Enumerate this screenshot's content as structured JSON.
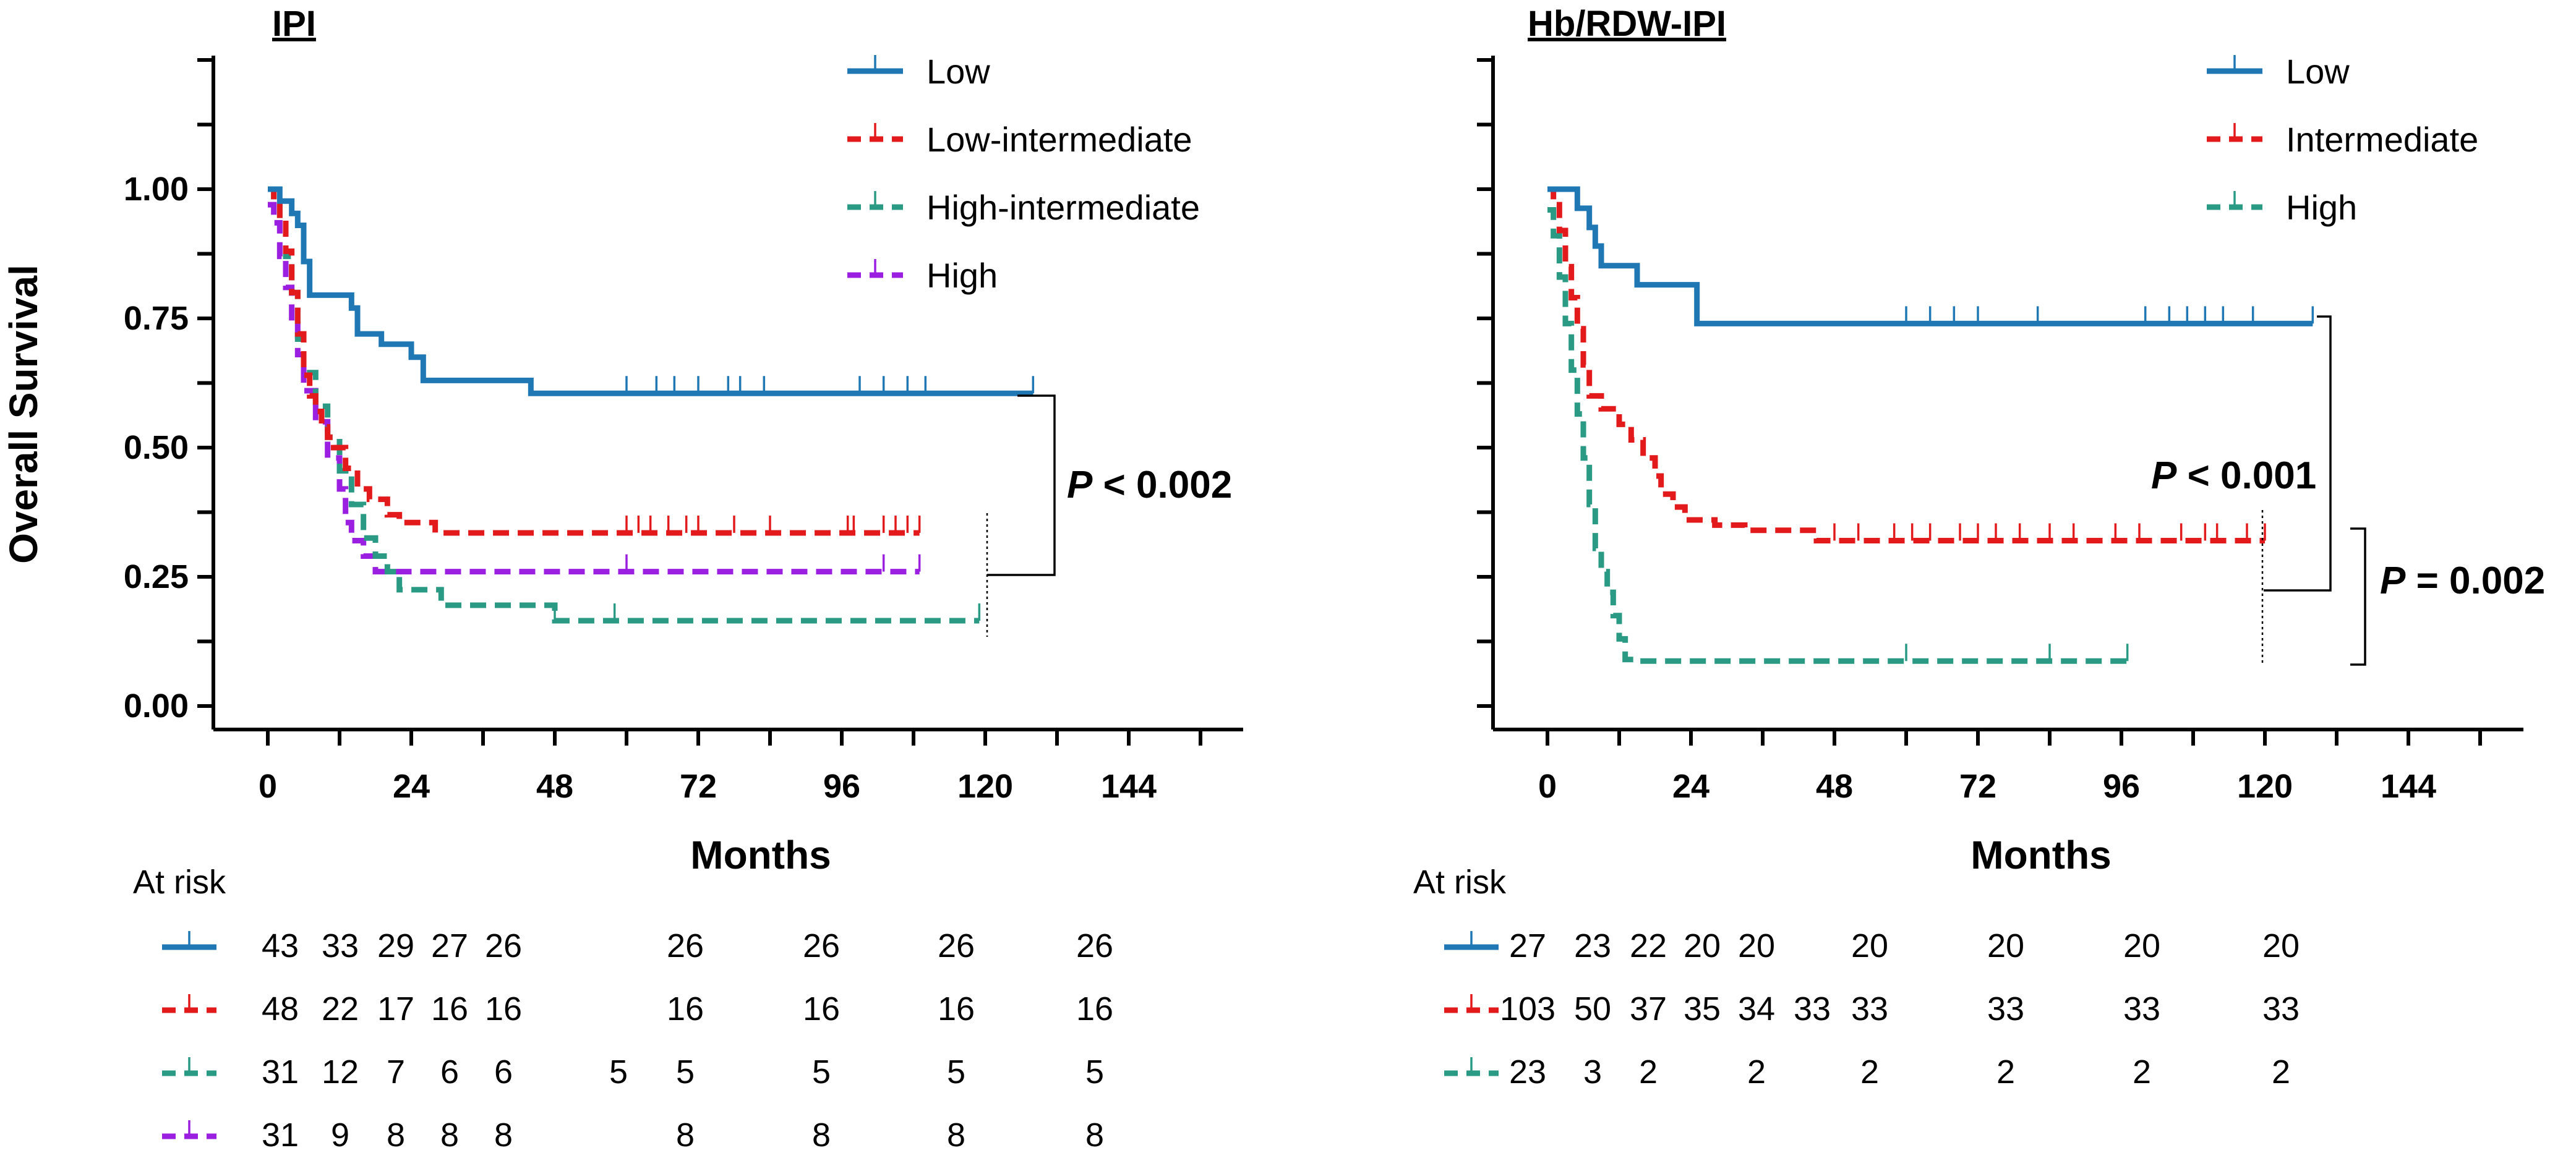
{
  "chart_data": [
    {
      "type": "line",
      "subtype": "kaplan-meier",
      "title": "IPI",
      "xlabel": "Months",
      "ylabel": "Overall Survival",
      "xlim": [
        0,
        162
      ],
      "ylim": [
        0,
        1.25
      ],
      "xticks": [
        "0",
        "24",
        "48",
        "72",
        "96",
        "120",
        "144"
      ],
      "yticks": [
        "0.00",
        "0.25",
        "0.50",
        "0.75",
        "1.00"
      ],
      "pvalues": [
        {
          "label": "P",
          "text": "< 0.002"
        }
      ],
      "series": [
        {
          "name": "Low",
          "color": "#1f77b4",
          "dash": "solid",
          "steps": [
            [
              0,
              1.0
            ],
            [
              2,
              0.977
            ],
            [
              4,
              0.953
            ],
            [
              5,
              0.93
            ],
            [
              6,
              0.86
            ],
            [
              7,
              0.795
            ],
            [
              14,
              0.77
            ],
            [
              15,
              0.72
            ],
            [
              19,
              0.7
            ],
            [
              24,
              0.675
            ],
            [
              26,
              0.63
            ],
            [
              44,
              0.605
            ],
            [
              128,
              0.605
            ]
          ],
          "censors": [
            60,
            65,
            68,
            72,
            77,
            79,
            83,
            99,
            103,
            107,
            110,
            128
          ]
        },
        {
          "name": "Low-intermediate",
          "color": "#e31a1c",
          "dash": "dashed",
          "steps": [
            [
              0,
              1.0
            ],
            [
              1,
              0.98
            ],
            [
              2,
              0.94
            ],
            [
              3,
              0.88
            ],
            [
              4,
              0.8
            ],
            [
              5,
              0.72
            ],
            [
              6,
              0.64
            ],
            [
              7,
              0.6
            ],
            [
              8,
              0.57
            ],
            [
              9,
              0.54
            ],
            [
              10,
              0.52
            ],
            [
              11,
              0.5
            ],
            [
              13,
              0.46
            ],
            [
              15,
              0.42
            ],
            [
              17,
              0.4
            ],
            [
              20,
              0.37
            ],
            [
              22,
              0.355
            ],
            [
              28,
              0.335
            ],
            [
              109,
              0.335
            ]
          ],
          "censors": [
            60,
            62,
            64,
            67,
            70,
            72,
            78,
            84,
            97,
            98,
            103,
            105,
            107,
            109
          ]
        },
        {
          "name": "High-intermediate",
          "color": "#2a9a84",
          "dash": "dashed",
          "steps": [
            [
              0,
              1.0
            ],
            [
              1,
              0.97
            ],
            [
              2,
              0.94
            ],
            [
              3,
              0.87
            ],
            [
              4,
              0.8
            ],
            [
              5,
              0.71
            ],
            [
              6,
              0.645
            ],
            [
              8,
              0.58
            ],
            [
              10,
              0.52
            ],
            [
              12,
              0.455
            ],
            [
              14,
              0.39
            ],
            [
              16,
              0.325
            ],
            [
              18,
              0.29
            ],
            [
              20,
              0.26
            ],
            [
              22,
              0.225
            ],
            [
              29,
              0.195
            ],
            [
              48,
              0.165
            ],
            [
              119,
              0.165
            ]
          ],
          "censors": [
            48,
            58,
            119
          ]
        },
        {
          "name": "High",
          "color": "#9b1fe0",
          "dash": "dashed",
          "steps": [
            [
              0,
              0.97
            ],
            [
              1,
              0.935
            ],
            [
              2,
              0.87
            ],
            [
              3,
              0.81
            ],
            [
              4,
              0.74
            ],
            [
              5,
              0.68
            ],
            [
              6,
              0.61
            ],
            [
              8,
              0.55
            ],
            [
              10,
              0.48
            ],
            [
              12,
              0.42
            ],
            [
              13,
              0.355
            ],
            [
              14,
              0.32
            ],
            [
              16,
              0.29
            ],
            [
              18,
              0.26
            ],
            [
              109,
              0.26
            ]
          ],
          "censors": [
            60,
            103,
            109
          ]
        }
      ],
      "at_risk": {
        "header": "At risk",
        "times": [
          0,
          12,
          24,
          36,
          48,
          60,
          72,
          96,
          120,
          144
        ],
        "rows": [
          {
            "name": "Low",
            "color": "#1f77b4",
            "dash": "solid",
            "values": [
              "43",
              "33",
              "29",
              "27",
              "26",
              "",
              "26",
              "26",
              "26",
              "26"
            ]
          },
          {
            "name": "Low-intermediate",
            "color": "#e31a1c",
            "dash": "dashed",
            "values": [
              "48",
              "22",
              "17",
              "16",
              "16",
              "",
              "16",
              "16",
              "16",
              "16"
            ]
          },
          {
            "name": "High-intermediate",
            "color": "#2a9a84",
            "dash": "dashed",
            "values": [
              "31",
              "12",
              "7",
              "6",
              "6",
              "5",
              "5",
              "5",
              "5",
              "5"
            ]
          },
          {
            "name": "High",
            "color": "#9b1fe0",
            "dash": "dashed",
            "values": [
              "31",
              "9",
              "8",
              "8",
              "8",
              "",
              "8",
              "8",
              "8",
              "8"
            ]
          }
        ]
      }
    },
    {
      "type": "line",
      "subtype": "kaplan-meier",
      "title": "Hb/RDW-IPI",
      "xlabel": "Months",
      "ylabel": "",
      "xlim": [
        0,
        162
      ],
      "ylim": [
        0,
        1.25
      ],
      "xticks": [
        "0",
        "24",
        "48",
        "72",
        "96",
        "120",
        "144"
      ],
      "yticks": [],
      "pvalues": [
        {
          "label": "P",
          "text": "< 0.001"
        },
        {
          "label": "P",
          "text": "= 0.002"
        }
      ],
      "series": [
        {
          "name": "Low",
          "color": "#1f77b4",
          "dash": "solid",
          "steps": [
            [
              0,
              1.0
            ],
            [
              5,
              0.963
            ],
            [
              7,
              0.926
            ],
            [
              8,
              0.89
            ],
            [
              9,
              0.852
            ],
            [
              15,
              0.815
            ],
            [
              25,
              0.74
            ],
            [
              128,
              0.74
            ]
          ],
          "censors": [
            60,
            64,
            68,
            72,
            82,
            100,
            104,
            107,
            110,
            113,
            118,
            128
          ]
        },
        {
          "name": "Intermediate",
          "color": "#e31a1c",
          "dash": "dashed",
          "steps": [
            [
              0,
              1.0
            ],
            [
              1,
              0.97
            ],
            [
              2,
              0.92
            ],
            [
              3,
              0.85
            ],
            [
              4,
              0.79
            ],
            [
              5,
              0.73
            ],
            [
              6,
              0.66
            ],
            [
              7,
              0.6
            ],
            [
              9,
              0.575
            ],
            [
              12,
              0.545
            ],
            [
              14,
              0.515
            ],
            [
              16,
              0.48
            ],
            [
              18,
              0.445
            ],
            [
              19,
              0.41
            ],
            [
              21,
              0.385
            ],
            [
              23,
              0.36
            ],
            [
              28,
              0.35
            ],
            [
              33,
              0.34
            ],
            [
              45,
              0.32
            ],
            [
              120,
              0.32
            ]
          ],
          "censors": [
            48,
            52,
            58,
            61,
            64,
            69,
            72,
            75,
            79,
            84,
            88,
            95,
            99,
            106,
            110,
            112,
            117,
            120
          ]
        },
        {
          "name": "High",
          "color": "#2a9a84",
          "dash": "dashed",
          "steps": [
            [
              0,
              0.96
            ],
            [
              1,
              0.91
            ],
            [
              2,
              0.83
            ],
            [
              3,
              0.74
            ],
            [
              4,
              0.65
            ],
            [
              5,
              0.565
            ],
            [
              6,
              0.48
            ],
            [
              7,
              0.39
            ],
            [
              8,
              0.305
            ],
            [
              9,
              0.26
            ],
            [
              10,
              0.22
            ],
            [
              11,
              0.175
            ],
            [
              12,
              0.13
            ],
            [
              13,
              0.09
            ],
            [
              15,
              0.087
            ],
            [
              97,
              0.087
            ]
          ],
          "censors": [
            60,
            84,
            97
          ]
        }
      ],
      "at_risk": {
        "header": "At risk",
        "times": [
          0,
          12,
          24,
          36,
          48,
          60,
          72,
          96,
          120,
          144
        ],
        "rows": [
          {
            "name": "Low",
            "color": "#1f77b4",
            "dash": "solid",
            "values": [
              "27",
              "23",
              "22",
              "20",
              "20",
              "",
              "20",
              "20",
              "20",
              "20"
            ]
          },
          {
            "name": "Intermediate",
            "color": "#e31a1c",
            "dash": "dashed",
            "values": [
              "103",
              "50",
              "37",
              "35",
              "34",
              "33",
              "33",
              "33",
              "33",
              "33"
            ]
          },
          {
            "name": "High",
            "color": "#2a9a84",
            "dash": "dashed",
            "values": [
              "23",
              "3",
              "2",
              "",
              "2",
              "",
              "2",
              "2",
              "2",
              "2"
            ]
          }
        ]
      }
    }
  ]
}
